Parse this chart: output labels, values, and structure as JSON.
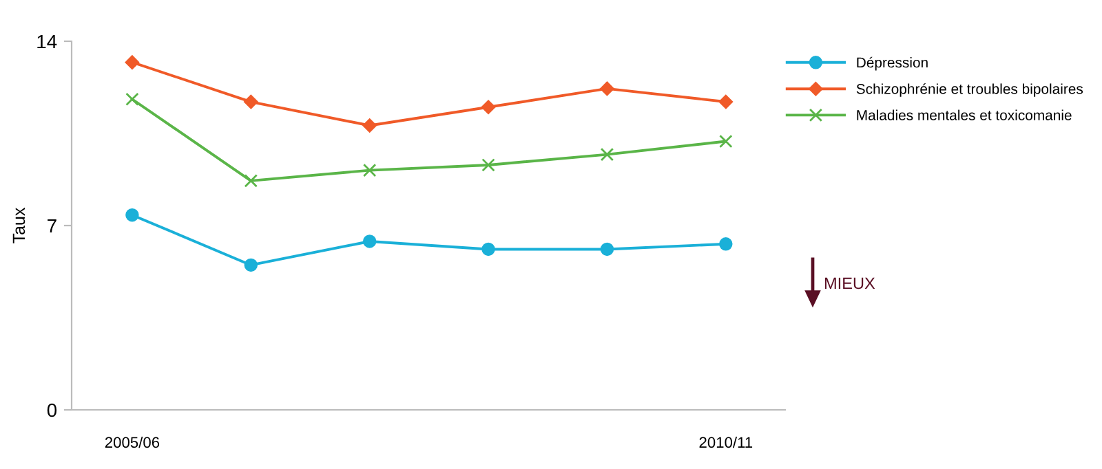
{
  "chart_data": {
    "type": "line",
    "ylabel": "Taux",
    "categories": [
      "2005/06",
      null,
      null,
      null,
      null,
      "2010/11"
    ],
    "series": [
      {
        "name": "Dépression",
        "color": "#1ab0d8",
        "marker": "circle",
        "values": [
          7.4,
          5.5,
          6.4,
          6.1,
          6.1,
          6.3
        ]
      },
      {
        "name": "Schizophrénie et troubles bipolaires",
        "color": "#f05a28",
        "marker": "diamond",
        "values": [
          13.2,
          11.7,
          10.8,
          11.5,
          12.2,
          11.7
        ]
      },
      {
        "name": "Maladies mentales et toxicomanie",
        "color": "#5ab548",
        "marker": "cross",
        "values": [
          11.8,
          8.7,
          9.1,
          9.3,
          9.7,
          10.2
        ]
      }
    ],
    "ylim": [
      0,
      14
    ],
    "yticks": [
      0,
      7,
      14
    ],
    "grid": false,
    "legend": "top right",
    "line_style": "solid",
    "annotations": [
      "MIEUX"
    ]
  }
}
